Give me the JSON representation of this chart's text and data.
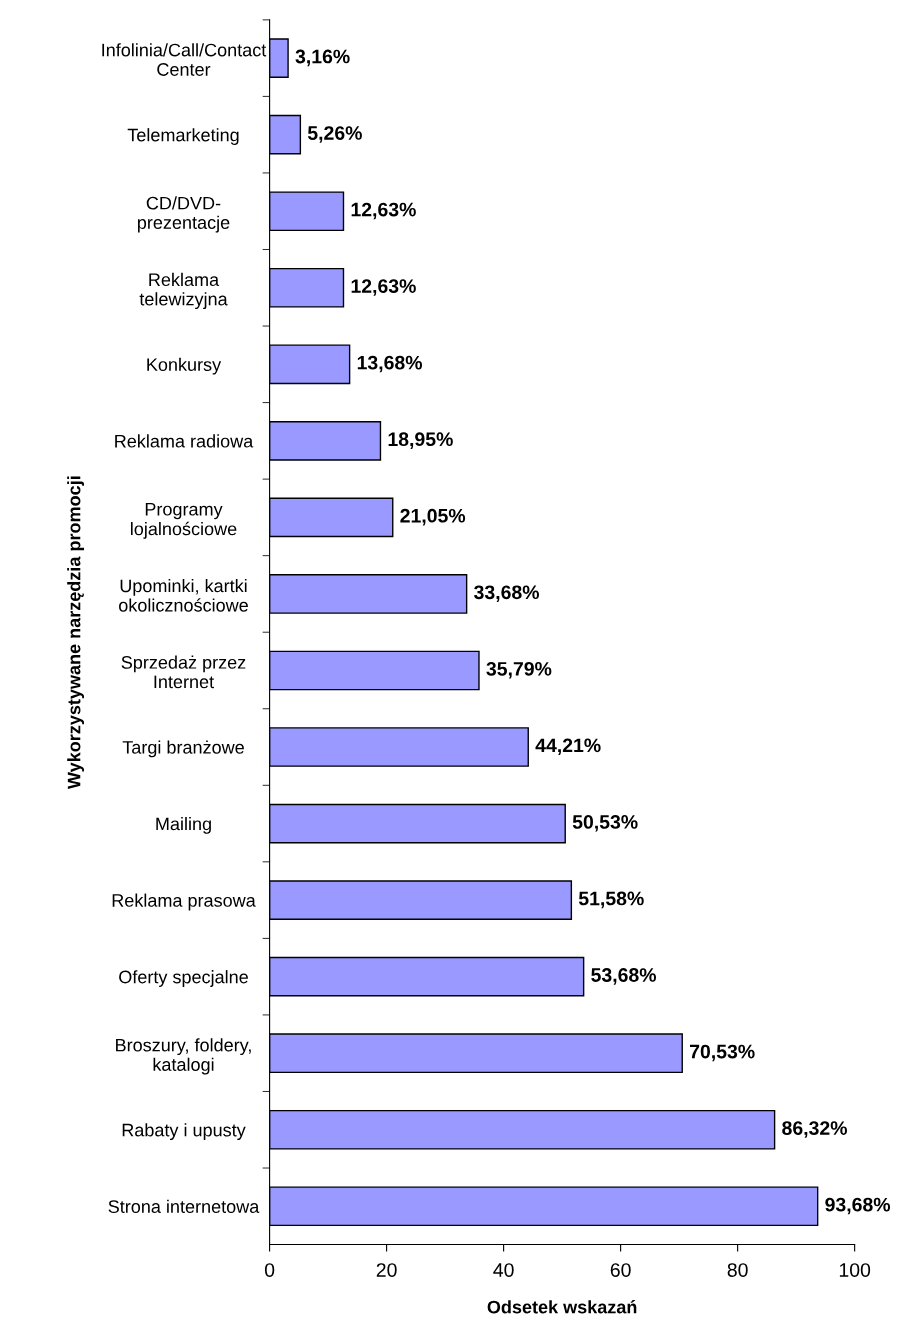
{
  "chart_data": {
    "type": "bar",
    "orientation": "horizontal",
    "xlabel": "Odsetek wskazań",
    "ylabel": "Wykorzystywane narzędzia promocji",
    "categories": [
      "Infolinia/Call/Contact\nCenter",
      "Telemarketing",
      "CD/DVD-\nprezentacje",
      "Reklama\ntelewizyjna",
      "Konkursy",
      "Reklama radiowa",
      "Programy\nlojalnościowe",
      "Upominki, kartki\nokolicznościowe",
      "Sprzedaż przez\nInternet",
      "Targi branżowe",
      "Mailing",
      "Reklama prasowa",
      "Oferty specjalne",
      "Broszury, foldery,\nkatalogi",
      "Rabaty i upusty",
      "Strona internetowa"
    ],
    "values": [
      3.16,
      5.26,
      12.63,
      12.63,
      13.68,
      18.95,
      21.05,
      33.68,
      35.79,
      44.21,
      50.53,
      51.58,
      53.68,
      70.53,
      86.32,
      93.68
    ],
    "value_labels": [
      "3,16%",
      "5,26%",
      "12,63%",
      "12,63%",
      "13,68%",
      "18,95%",
      "21,05%",
      "33,68%",
      "35,79%",
      "44,21%",
      "50,53%",
      "51,58%",
      "53,68%",
      "70,53%",
      "86,32%",
      "93,68%"
    ],
    "color": "#9999ff",
    "xlim": [
      0,
      100
    ],
    "xticks": [
      0,
      20,
      40,
      60,
      80,
      100
    ],
    "grid": false,
    "legend": false
  }
}
